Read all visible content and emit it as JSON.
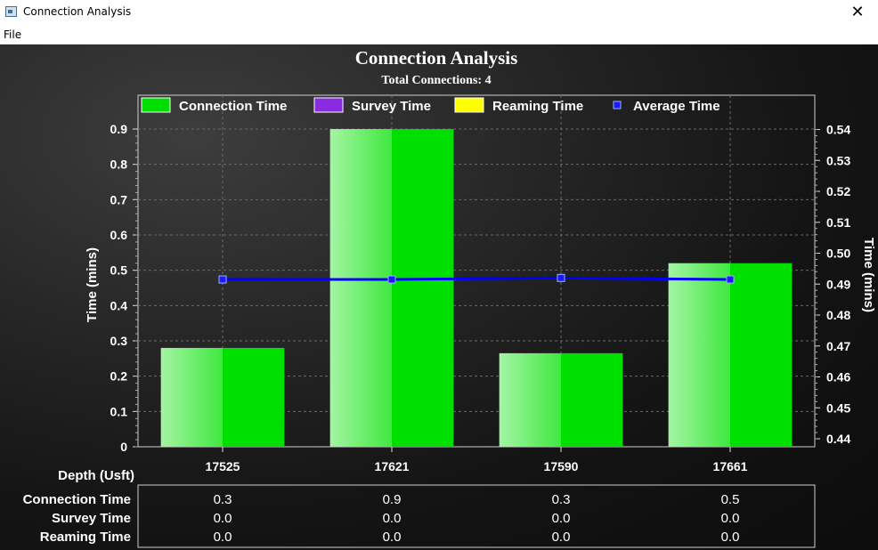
{
  "window": {
    "title": "Connection Analysis",
    "close_glyph": "✕",
    "icon": "app-window-icon"
  },
  "menu": {
    "file_label": "File"
  },
  "chart_data": {
    "type": "bar",
    "title": "Connection Analysis",
    "subtitle": "Total Connections: 4",
    "xlabel": "Depth (Usft)",
    "ylabel": "Time (mins)",
    "y2label": "Time (mins)",
    "categories": [
      "17525",
      "17621",
      "17590",
      "17661"
    ],
    "ylim": [
      0,
      0.9
    ],
    "y_ticks": [
      "0",
      "0.1",
      "0.2",
      "0.3",
      "0.4",
      "0.5",
      "0.6",
      "0.7",
      "0.8",
      "0.9"
    ],
    "y2lim": [
      0.44,
      0.54
    ],
    "y2_ticks": [
      "0.44",
      "0.45",
      "0.46",
      "0.47",
      "0.48",
      "0.49",
      "0.50",
      "0.51",
      "0.52",
      "0.53",
      "0.54"
    ],
    "series": [
      {
        "name": "Connection Time",
        "kind": "bar",
        "color": "#00e000",
        "values": [
          0.28,
          0.9,
          0.265,
          0.52
        ]
      },
      {
        "name": "Survey Time",
        "kind": "bar",
        "color": "#8a2be2",
        "values": [
          0,
          0,
          0,
          0
        ]
      },
      {
        "name": "Reaming Time",
        "kind": "bar",
        "color": "#ffff00",
        "values": [
          0,
          0,
          0,
          0
        ]
      },
      {
        "name": "Average Time",
        "kind": "line",
        "axis": "right",
        "color": "#0000ff",
        "values": [
          0.4915,
          0.4915,
          0.492,
          0.4915
        ]
      }
    ],
    "legend_position": "top",
    "grid": true,
    "table": {
      "rows": [
        {
          "label": "Connection Time",
          "values": [
            "0.3",
            "0.9",
            "0.3",
            "0.5"
          ]
        },
        {
          "label": "Survey Time",
          "values": [
            "0.0",
            "0.0",
            "0.0",
            "0.0"
          ]
        },
        {
          "label": "Reaming Time",
          "values": [
            "0.0",
            "0.0",
            "0.0",
            "0.0"
          ]
        }
      ]
    }
  }
}
